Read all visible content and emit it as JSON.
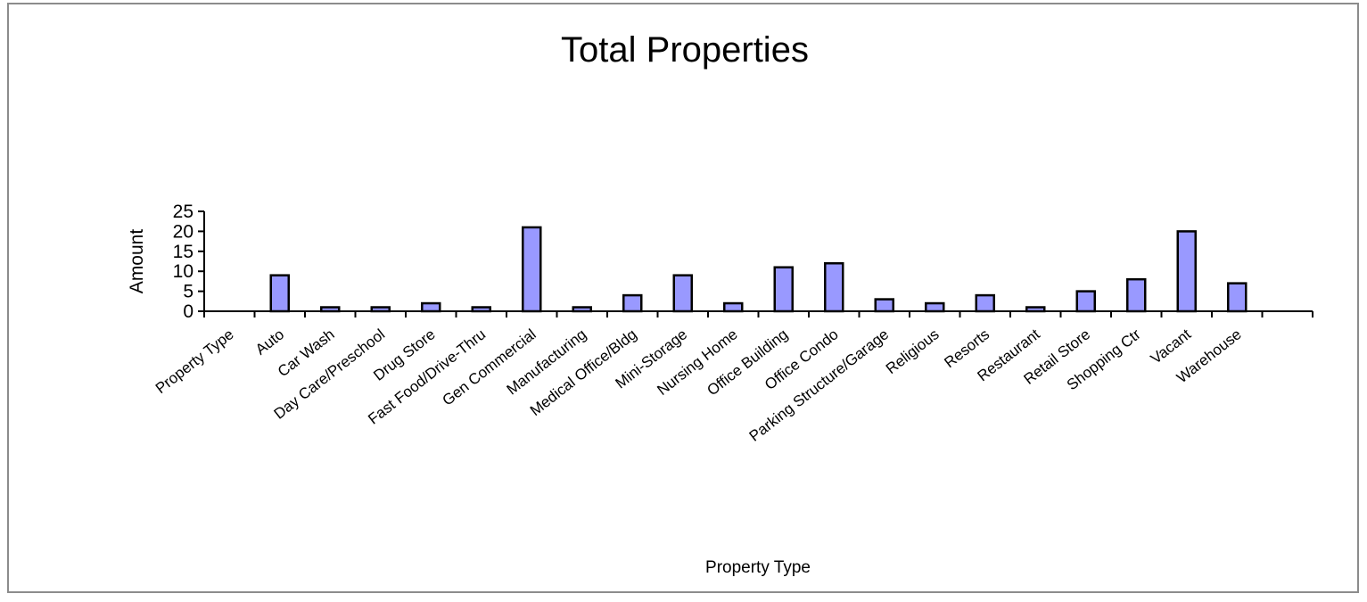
{
  "chart_data": {
    "type": "bar",
    "title": "Total Properties",
    "xlabel": "Property Type",
    "ylabel": "Amount",
    "ylim": [
      0,
      25
    ],
    "yticks": [
      "0",
      "5",
      "10",
      "15",
      "20",
      "25"
    ],
    "categories": [
      "Property Type",
      "Auto",
      "Car Wash",
      "Day Care/Preschool",
      "Drug Store",
      "Fast Food/Drive-Thru",
      "Gen Commercial",
      "Manufacturing",
      "Medical Office/Bldg",
      "Mini-Storage",
      "Nursing Home",
      "Office Building",
      "Office Condo",
      "Parking Structure/Garage",
      "Religious",
      "Resorts",
      "Restaurant",
      "Retail Store",
      "Shopping Ctr",
      "Vacant",
      "Warehouse",
      ""
    ],
    "values": [
      null,
      9,
      1,
      1,
      2,
      1,
      21,
      1,
      4,
      9,
      2,
      11,
      12,
      3,
      2,
      4,
      1,
      5,
      8,
      20,
      7,
      null
    ],
    "legend": "none",
    "grid": false,
    "bar_color": "#9999ff",
    "bar_outline": "#000000"
  }
}
